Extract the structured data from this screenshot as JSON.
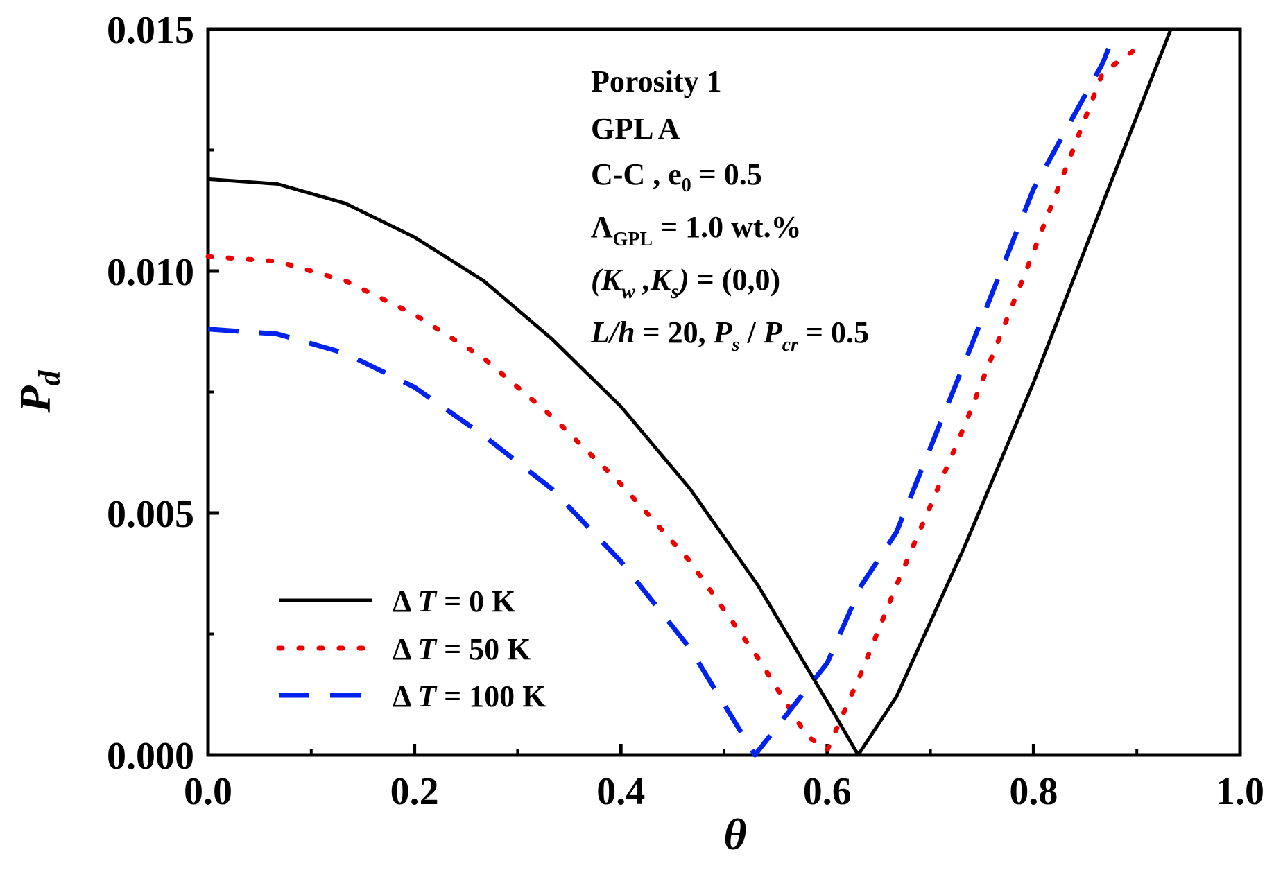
{
  "chart_data": {
    "type": "line",
    "xlabel": "θ",
    "ylabel": {
      "main": "P",
      "sub": "d"
    },
    "xlim": [
      0.0,
      1.0
    ],
    "ylim": [
      0.0,
      0.015
    ],
    "x_ticks": [
      "0.0",
      "0.2",
      "0.4",
      "0.6",
      "0.8",
      "1.0"
    ],
    "y_ticks": [
      "0.000",
      "0.005",
      "0.010",
      "0.015"
    ],
    "x_tick_values": [
      0.0,
      0.2,
      0.4,
      0.6,
      0.8,
      1.0
    ],
    "y_tick_values": [
      0.0,
      0.005,
      0.01,
      0.015
    ],
    "x_minor_values": [
      0.1,
      0.3,
      0.5,
      0.7,
      0.9
    ],
    "y_minor_values": [
      0.0025,
      0.0075,
      0.0125
    ],
    "legend_position": "bottom-left",
    "series": [
      {
        "name": "ΔT = 0 K",
        "label": {
          "delta": "Δ ",
          "var": "T",
          "rest": " = 0 K"
        },
        "color": "#000000",
        "style": "solid",
        "x": [
          0.0,
          0.067,
          0.133,
          0.2,
          0.267,
          0.333,
          0.4,
          0.467,
          0.533,
          0.6,
          0.63,
          0.667,
          0.733,
          0.8,
          0.867,
          0.933
        ],
        "y": [
          0.0119,
          0.0118,
          0.0114,
          0.0107,
          0.0098,
          0.0086,
          0.0072,
          0.0055,
          0.0035,
          0.0011,
          0.0,
          0.0012,
          0.0043,
          0.0077,
          0.0114,
          0.015
        ]
      },
      {
        "name": "ΔT = 50 K",
        "label": {
          "delta": "Δ ",
          "var": "T",
          "rest": " = 50 K"
        },
        "color": "#ee0000",
        "style": "dotted",
        "x": [
          0.0,
          0.067,
          0.133,
          0.2,
          0.267,
          0.333,
          0.4,
          0.467,
          0.533,
          0.58,
          0.6,
          0.633,
          0.667,
          0.733,
          0.8,
          0.867,
          0.9
        ],
        "y": [
          0.0103,
          0.0102,
          0.0098,
          0.0091,
          0.0082,
          0.007,
          0.0056,
          0.004,
          0.002,
          0.0004,
          0.0001,
          0.0017,
          0.0035,
          0.0068,
          0.0104,
          0.0141,
          0.0146
        ]
      },
      {
        "name": "ΔT = 100 K",
        "label": {
          "delta": "Δ ",
          "var": "T",
          "rest": " = 100 K"
        },
        "color": "#0022ee",
        "style": "dashed",
        "x": [
          0.0,
          0.067,
          0.133,
          0.2,
          0.267,
          0.333,
          0.4,
          0.467,
          0.53,
          0.6,
          0.633,
          0.667,
          0.733,
          0.8,
          0.867,
          0.88
        ],
        "y": [
          0.0088,
          0.0087,
          0.0083,
          0.0076,
          0.0066,
          0.0055,
          0.004,
          0.0022,
          0.0,
          0.0019,
          0.0035,
          0.0046,
          0.0081,
          0.0117,
          0.0143,
          0.015
        ]
      }
    ],
    "annotations": [
      {
        "text": "Porosity 1"
      },
      {
        "text": "GPL A"
      },
      {
        "pre": "C-C , e",
        "sub": "0",
        "post": " = 0.5"
      },
      {
        "pre": "Λ",
        "sub": "GPL",
        "post": " = 1.0 wt.%"
      },
      {
        "open": "(K",
        "sub1": "w",
        "mid": " ,K",
        "sub2": "s",
        "close": ")",
        "post": " = (0,0)"
      },
      {
        "pre": "L/h",
        "mid": " = 20,  ",
        "p1": "P",
        "sub1": "s",
        "slash": " / ",
        "p2": "P",
        "sub2": "cr",
        "post": " = 0.5"
      }
    ]
  }
}
